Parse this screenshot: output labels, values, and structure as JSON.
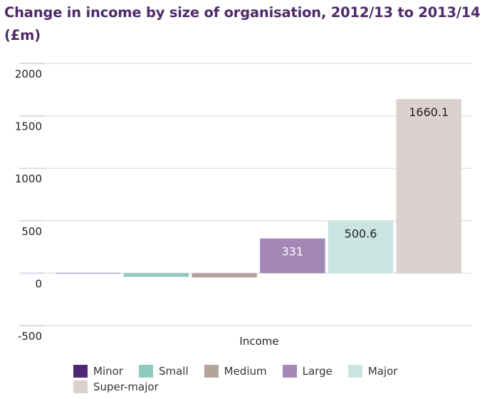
{
  "title": "Change in income by size of organisation, 2012/13 to 2013/14 (£m)",
  "chart_data": {
    "type": "bar",
    "title": "Change in income by size of organisation, 2012/13 to 2013/14 (£m)",
    "xlabel": "Income",
    "ylabel": "",
    "categories": [
      "Income"
    ],
    "ylim": [
      -500,
      2000
    ],
    "yticks": [
      2000,
      1500,
      1000,
      500,
      0,
      -500
    ],
    "ytick_labels": [
      "2000",
      "1500",
      "1000",
      "500",
      "0",
      "-500"
    ],
    "grid": true,
    "legend_position": "bottom",
    "series": [
      {
        "name": "Minor",
        "values": [
          -1
        ],
        "color": "#4f2878",
        "label": ""
      },
      {
        "name": "Small",
        "values": [
          -35
        ],
        "color": "#8dcbc0",
        "label": ""
      },
      {
        "name": "Medium",
        "values": [
          -40
        ],
        "color": "#b3a39b",
        "label": ""
      },
      {
        "name": "Large",
        "values": [
          331
        ],
        "color": "#a387b5",
        "label": "331",
        "label_color": "#ffffff"
      },
      {
        "name": "Major",
        "values": [
          500.6
        ],
        "color": "#cae5e0",
        "label": "500.6",
        "label_color": "#222222"
      },
      {
        "name": "Super-major",
        "values": [
          1660.1
        ],
        "color": "#dbd1cf",
        "label": "1660.1",
        "label_color": "#222222"
      }
    ]
  }
}
